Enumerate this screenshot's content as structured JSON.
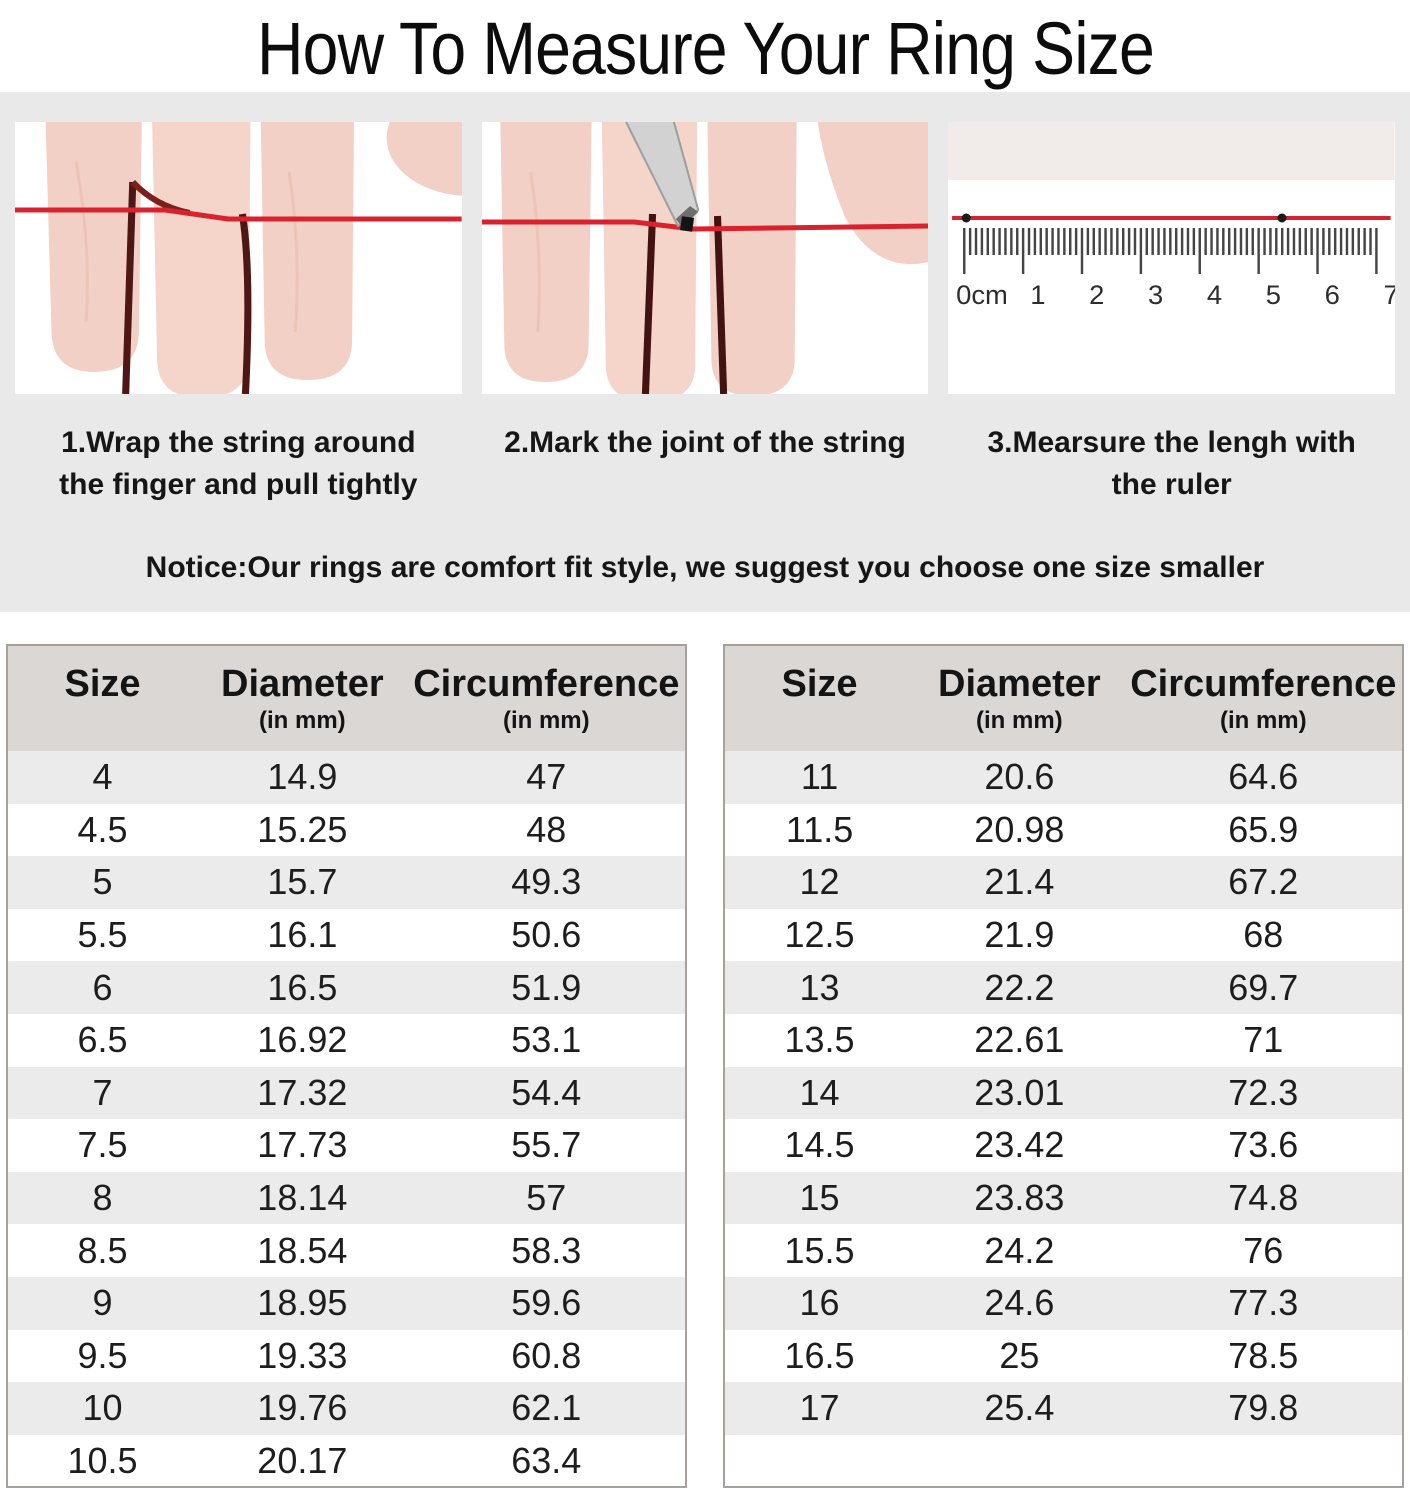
{
  "title": "How To Measure Your Ring Size",
  "steps": [
    {
      "lines": [
        "1.Wrap the string around",
        "the finger and pull tightly"
      ]
    },
    {
      "lines": [
        "2.Mark the joint of the string"
      ]
    },
    {
      "lines": [
        "3.Mearsure the lengh with",
        "the ruler"
      ]
    }
  ],
  "notice": "Notice:Our rings are comfort fit style, we suggest you choose one size smaller",
  "ruler_labels": [
    "0cm",
    "1",
    "2",
    "3",
    "4",
    "5",
    "6",
    "7"
  ],
  "size_chart": {
    "columns": {
      "size": "Size",
      "diameter": "Diameter",
      "circumference": "Circumference",
      "unit": "(in mm)"
    },
    "left_rows": [
      [
        "4",
        "14.9",
        "47"
      ],
      [
        "4.5",
        "15.25",
        "48"
      ],
      [
        "5",
        "15.7",
        "49.3"
      ],
      [
        "5.5",
        "16.1",
        "50.6"
      ],
      [
        "6",
        "16.5",
        "51.9"
      ],
      [
        "6.5",
        "16.92",
        "53.1"
      ],
      [
        "7",
        "17.32",
        "54.4"
      ],
      [
        "7.5",
        "17.73",
        "55.7"
      ],
      [
        "8",
        "18.14",
        "57"
      ],
      [
        "8.5",
        "18.54",
        "58.3"
      ],
      [
        "9",
        "18.95",
        "59.6"
      ],
      [
        "9.5",
        "19.33",
        "60.8"
      ],
      [
        "10",
        "19.76",
        "62.1"
      ],
      [
        "10.5",
        "20.17",
        "63.4"
      ]
    ],
    "right_rows": [
      [
        "11",
        "20.6",
        "64.6"
      ],
      [
        "11.5",
        "20.98",
        "65.9"
      ],
      [
        "12",
        "21.4",
        "67.2"
      ],
      [
        "12.5",
        "21.9",
        "68"
      ],
      [
        "13",
        "22.2",
        "69.7"
      ],
      [
        "13.5",
        "22.61",
        "71"
      ],
      [
        "14",
        "23.01",
        "72.3"
      ],
      [
        "14.5",
        "23.42",
        "73.6"
      ],
      [
        "15",
        "23.83",
        "74.8"
      ],
      [
        "15.5",
        "24.2",
        "76"
      ],
      [
        "16",
        "24.6",
        "77.3"
      ],
      [
        "16.5",
        "25",
        "78.5"
      ],
      [
        "17",
        "25.4",
        "79.8"
      ]
    ]
  },
  "colors": {
    "string_red": "#d8232f",
    "band_gray": "#e9e9e9",
    "header_gray": "#dad7d4",
    "row_gray": "#ebebeb"
  }
}
